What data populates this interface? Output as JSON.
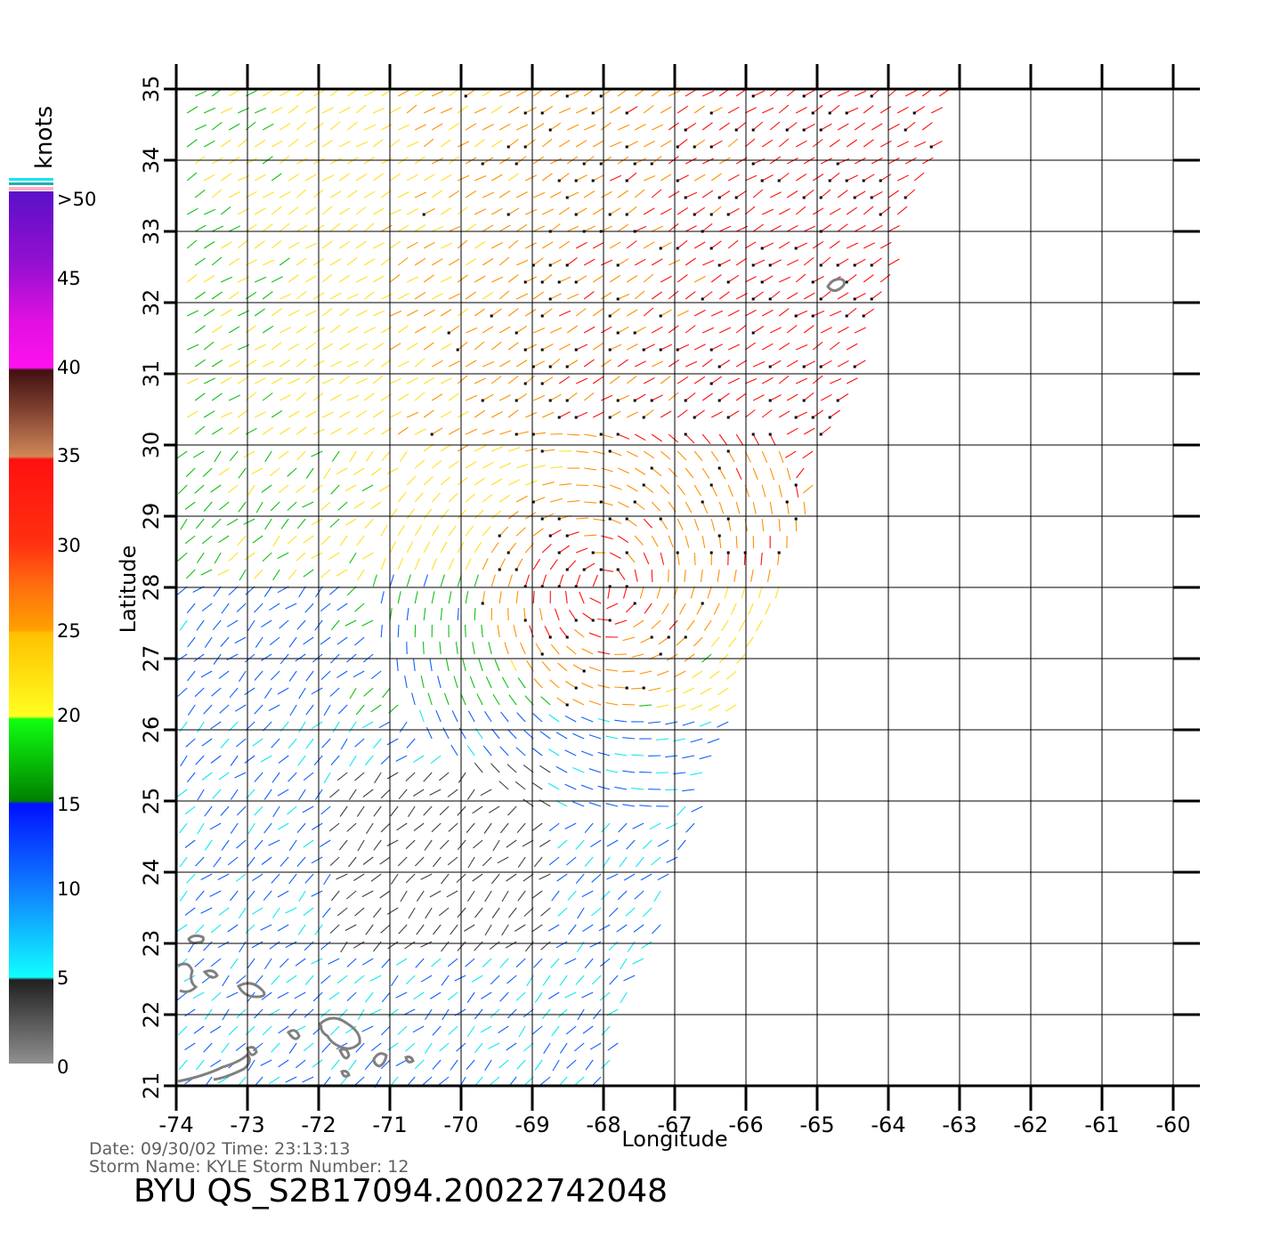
{
  "map": {
    "x_axis_label": "Longitude",
    "y_axis_label": "Latitude",
    "lon_range": [
      -74,
      -60
    ],
    "lat_range": [
      21,
      35
    ],
    "lon_ticks": [
      "-74",
      "-73",
      "-72",
      "-71",
      "-70",
      "-69",
      "-68",
      "-67",
      "-66",
      "-65",
      "-64",
      "-63",
      "-62",
      "-61",
      "-60"
    ],
    "lat_ticks": [
      "21",
      "22",
      "23",
      "24",
      "25",
      "26",
      "27",
      "28",
      "29",
      "30",
      "31",
      "32",
      "33",
      "34",
      "35"
    ],
    "grid": true,
    "swath_type": "wind-barb field",
    "storm_center_approx": {
      "lon": -68.0,
      "lat": 28.0
    }
  },
  "colorbar": {
    "unit": "knots",
    "labels": [
      ">50",
      "45",
      "40",
      "35",
      "30",
      "25",
      "20",
      "15",
      "10",
      "5",
      "0"
    ],
    "colors": {
      "50": "#5a10c8",
      "45": "#c010d8",
      "40": "#5a2010",
      "35": "#c07848",
      "30": "#ff1010",
      "25": "#ff9000",
      "20": "#ffe020",
      "15": "#10c010",
      "10": "#1060ff",
      "5": "#10e8f0",
      "0": "#404040"
    }
  },
  "footer": {
    "date_line": "Date: 09/30/02   Time: 23:13:13",
    "storm_line": "Storm  Name: KYLE    Storm  Number: 12",
    "product_id": "BYU  QS_S2B17094.20022742048"
  }
}
